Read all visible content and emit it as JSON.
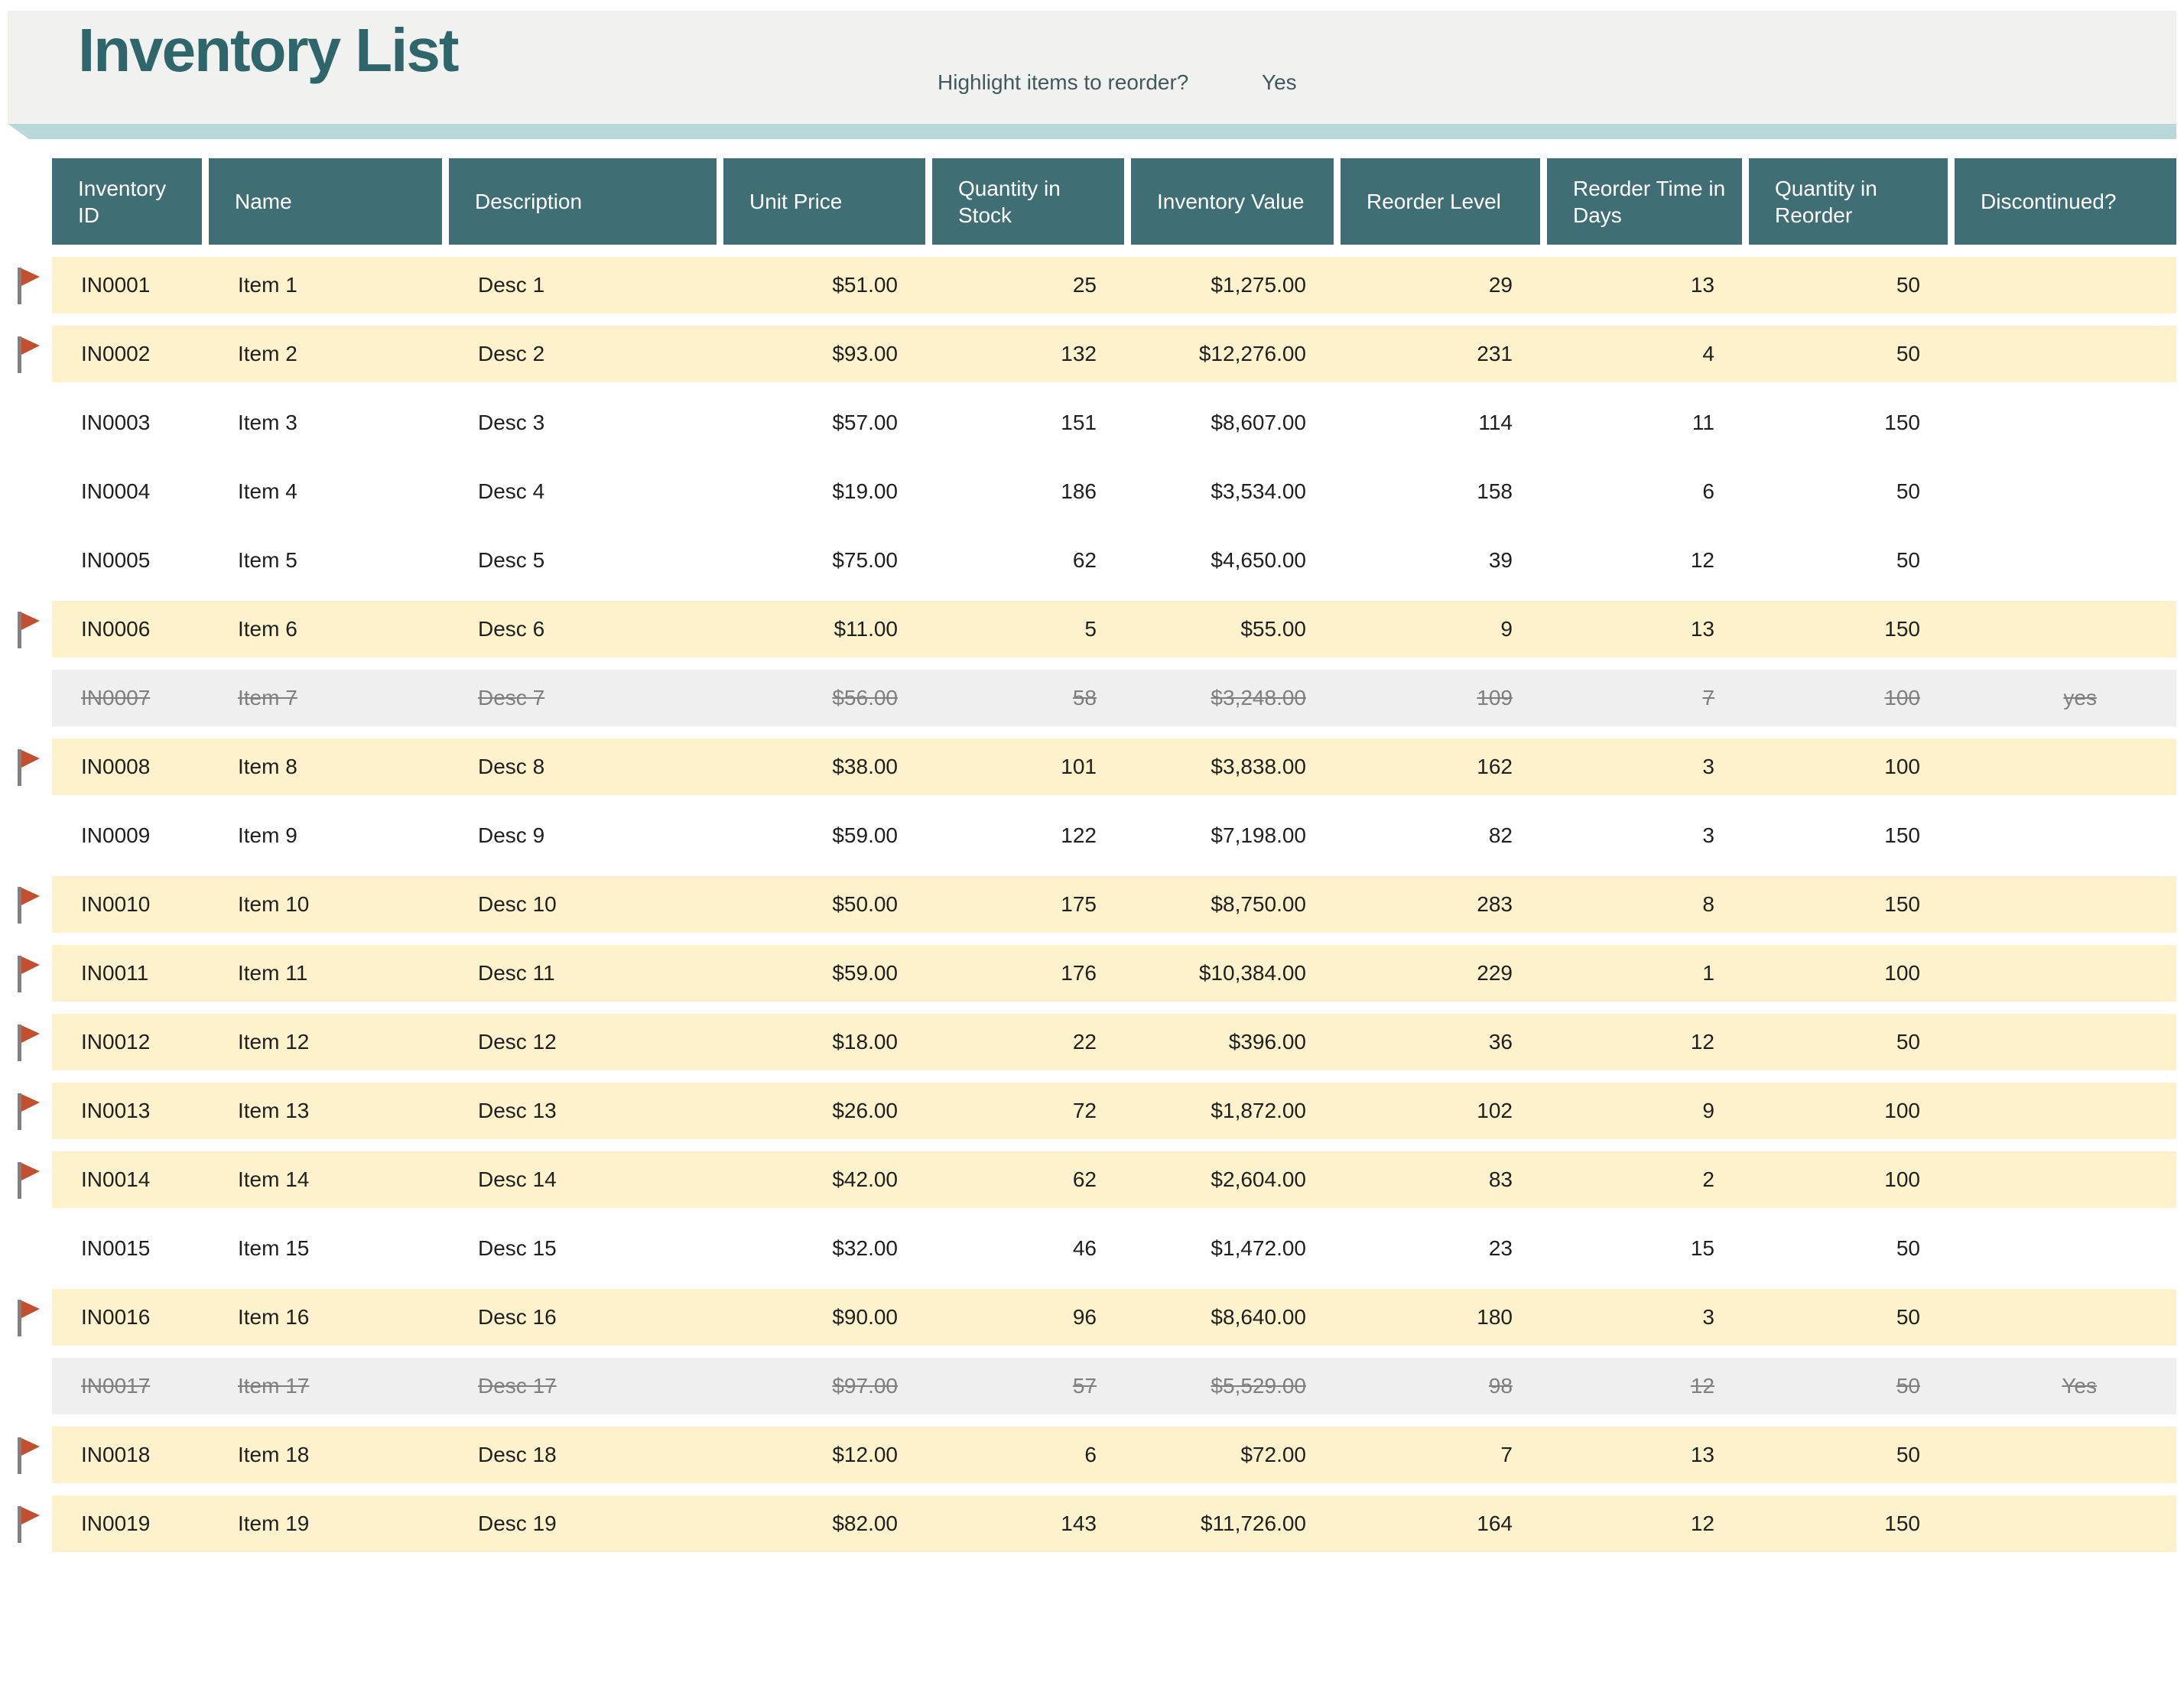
{
  "header": {
    "title": "Inventory List",
    "reorder_question": "Highlight items to reorder?",
    "reorder_answer": "Yes"
  },
  "icons": {
    "flag": "reorder-flag-icon"
  },
  "colors": {
    "title_text": "#2E666C",
    "title_band_bg": "#F1F1EF",
    "ribbon": "#B9D8DA",
    "header_bg": "#3F6E74",
    "header_text": "#FFFFFF",
    "highlight_row_bg": "#FDF2CC",
    "discontinued_row_bg": "#EFEFEF",
    "discontinued_text": "#7F7F7F",
    "body_text": "#1F1F1F",
    "flag_red": "#C25030",
    "flag_pole": "#808080"
  },
  "table": {
    "columns": [
      {
        "key": "id",
        "label": "Inventory ID",
        "align": "left"
      },
      {
        "key": "name",
        "label": "Name",
        "align": "left"
      },
      {
        "key": "desc",
        "label": "Description",
        "align": "left"
      },
      {
        "key": "price",
        "label": "Unit Price",
        "align": "right"
      },
      {
        "key": "qty",
        "label": "Quantity in Stock",
        "align": "right"
      },
      {
        "key": "value",
        "label": "Inventory Value",
        "align": "right"
      },
      {
        "key": "reorder_level",
        "label": "Reorder Level",
        "align": "right"
      },
      {
        "key": "reorder_time",
        "label": "Reorder Time in Days",
        "align": "right"
      },
      {
        "key": "qty_reorder",
        "label": "Quantity in Reorder",
        "align": "right"
      },
      {
        "key": "discontinued",
        "label": "Discontinued?",
        "align": "right"
      }
    ],
    "rows": [
      {
        "id": "IN0001",
        "name": "Item 1",
        "desc": "Desc 1",
        "price": "$51.00",
        "qty": "25",
        "value": "$1,275.00",
        "reorder_level": "29",
        "reorder_time": "13",
        "qty_reorder": "50",
        "discontinued": "",
        "flagged": true,
        "status": "reorder"
      },
      {
        "id": "IN0002",
        "name": "Item 2",
        "desc": "Desc 2",
        "price": "$93.00",
        "qty": "132",
        "value": "$12,276.00",
        "reorder_level": "231",
        "reorder_time": "4",
        "qty_reorder": "50",
        "discontinued": "",
        "flagged": true,
        "status": "reorder"
      },
      {
        "id": "IN0003",
        "name": "Item 3",
        "desc": "Desc 3",
        "price": "$57.00",
        "qty": "151",
        "value": "$8,607.00",
        "reorder_level": "114",
        "reorder_time": "11",
        "qty_reorder": "150",
        "discontinued": "",
        "flagged": false,
        "status": "normal"
      },
      {
        "id": "IN0004",
        "name": "Item 4",
        "desc": "Desc 4",
        "price": "$19.00",
        "qty": "186",
        "value": "$3,534.00",
        "reorder_level": "158",
        "reorder_time": "6",
        "qty_reorder": "50",
        "discontinued": "",
        "flagged": false,
        "status": "normal"
      },
      {
        "id": "IN0005",
        "name": "Item 5",
        "desc": "Desc 5",
        "price": "$75.00",
        "qty": "62",
        "value": "$4,650.00",
        "reorder_level": "39",
        "reorder_time": "12",
        "qty_reorder": "50",
        "discontinued": "",
        "flagged": false,
        "status": "normal"
      },
      {
        "id": "IN0006",
        "name": "Item 6",
        "desc": "Desc 6",
        "price": "$11.00",
        "qty": "5",
        "value": "$55.00",
        "reorder_level": "9",
        "reorder_time": "13",
        "qty_reorder": "150",
        "discontinued": "",
        "flagged": true,
        "status": "reorder"
      },
      {
        "id": "IN0007",
        "name": "Item 7",
        "desc": "Desc 7",
        "price": "$56.00",
        "qty": "58",
        "value": "$3,248.00",
        "reorder_level": "109",
        "reorder_time": "7",
        "qty_reorder": "100",
        "discontinued": "yes",
        "flagged": false,
        "status": "discontinued"
      },
      {
        "id": "IN0008",
        "name": "Item 8",
        "desc": "Desc 8",
        "price": "$38.00",
        "qty": "101",
        "value": "$3,838.00",
        "reorder_level": "162",
        "reorder_time": "3",
        "qty_reorder": "100",
        "discontinued": "",
        "flagged": true,
        "status": "reorder"
      },
      {
        "id": "IN0009",
        "name": "Item 9",
        "desc": "Desc 9",
        "price": "$59.00",
        "qty": "122",
        "value": "$7,198.00",
        "reorder_level": "82",
        "reorder_time": "3",
        "qty_reorder": "150",
        "discontinued": "",
        "flagged": false,
        "status": "normal"
      },
      {
        "id": "IN0010",
        "name": "Item 10",
        "desc": "Desc 10",
        "price": "$50.00",
        "qty": "175",
        "value": "$8,750.00",
        "reorder_level": "283",
        "reorder_time": "8",
        "qty_reorder": "150",
        "discontinued": "",
        "flagged": true,
        "status": "reorder"
      },
      {
        "id": "IN0011",
        "name": "Item 11",
        "desc": "Desc 11",
        "price": "$59.00",
        "qty": "176",
        "value": "$10,384.00",
        "reorder_level": "229",
        "reorder_time": "1",
        "qty_reorder": "100",
        "discontinued": "",
        "flagged": true,
        "status": "reorder"
      },
      {
        "id": "IN0012",
        "name": "Item 12",
        "desc": "Desc 12",
        "price": "$18.00",
        "qty": "22",
        "value": "$396.00",
        "reorder_level": "36",
        "reorder_time": "12",
        "qty_reorder": "50",
        "discontinued": "",
        "flagged": true,
        "status": "reorder"
      },
      {
        "id": "IN0013",
        "name": "Item 13",
        "desc": "Desc 13",
        "price": "$26.00",
        "qty": "72",
        "value": "$1,872.00",
        "reorder_level": "102",
        "reorder_time": "9",
        "qty_reorder": "100",
        "discontinued": "",
        "flagged": true,
        "status": "reorder"
      },
      {
        "id": "IN0014",
        "name": "Item 14",
        "desc": "Desc 14",
        "price": "$42.00",
        "qty": "62",
        "value": "$2,604.00",
        "reorder_level": "83",
        "reorder_time": "2",
        "qty_reorder": "100",
        "discontinued": "",
        "flagged": true,
        "status": "reorder"
      },
      {
        "id": "IN0015",
        "name": "Item 15",
        "desc": "Desc 15",
        "price": "$32.00",
        "qty": "46",
        "value": "$1,472.00",
        "reorder_level": "23",
        "reorder_time": "15",
        "qty_reorder": "50",
        "discontinued": "",
        "flagged": false,
        "status": "normal"
      },
      {
        "id": "IN0016",
        "name": "Item 16",
        "desc": "Desc 16",
        "price": "$90.00",
        "qty": "96",
        "value": "$8,640.00",
        "reorder_level": "180",
        "reorder_time": "3",
        "qty_reorder": "50",
        "discontinued": "",
        "flagged": true,
        "status": "reorder"
      },
      {
        "id": "IN0017",
        "name": "Item 17",
        "desc": "Desc 17",
        "price": "$97.00",
        "qty": "57",
        "value": "$5,529.00",
        "reorder_level": "98",
        "reorder_time": "12",
        "qty_reorder": "50",
        "discontinued": "Yes",
        "flagged": false,
        "status": "discontinued"
      },
      {
        "id": "IN0018",
        "name": "Item 18",
        "desc": "Desc 18",
        "price": "$12.00",
        "qty": "6",
        "value": "$72.00",
        "reorder_level": "7",
        "reorder_time": "13",
        "qty_reorder": "50",
        "discontinued": "",
        "flagged": true,
        "status": "reorder"
      },
      {
        "id": "IN0019",
        "name": "Item 19",
        "desc": "Desc 19",
        "price": "$82.00",
        "qty": "143",
        "value": "$11,726.00",
        "reorder_level": "164",
        "reorder_time": "12",
        "qty_reorder": "150",
        "discontinued": "",
        "flagged": true,
        "status": "reorder"
      }
    ]
  }
}
